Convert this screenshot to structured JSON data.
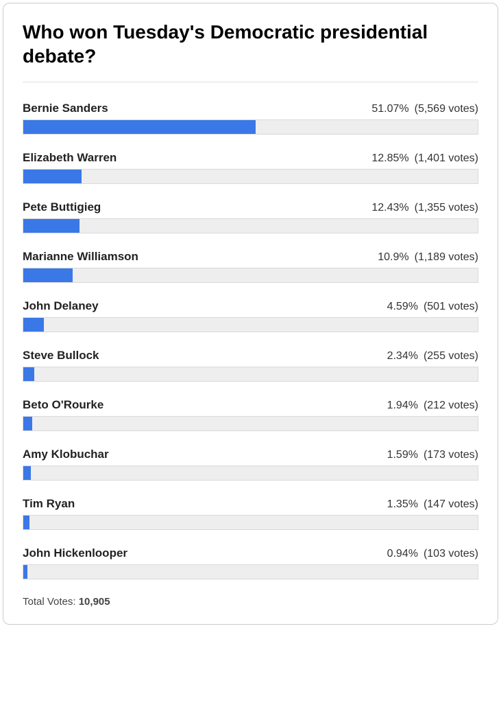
{
  "poll": {
    "title": "Who won Tuesday's Democratic presidential debate?",
    "bar_color": "#3b78e7",
    "track_color": "#eeeeee",
    "track_border": "#d9d9d9",
    "candidates": [
      {
        "name": "Bernie Sanders",
        "percent": 51.07,
        "percent_label": "51.07%",
        "votes": "(5,569 votes)"
      },
      {
        "name": "Elizabeth Warren",
        "percent": 12.85,
        "percent_label": "12.85%",
        "votes": "(1,401 votes)"
      },
      {
        "name": "Pete Buttigieg",
        "percent": 12.43,
        "percent_label": "12.43%",
        "votes": "(1,355 votes)"
      },
      {
        "name": "Marianne Williamson",
        "percent": 10.9,
        "percent_label": "10.9%",
        "votes": "(1,189 votes)"
      },
      {
        "name": "John Delaney",
        "percent": 4.59,
        "percent_label": "4.59%",
        "votes": "(501 votes)"
      },
      {
        "name": "Steve Bullock",
        "percent": 2.34,
        "percent_label": "2.34%",
        "votes": "(255 votes)"
      },
      {
        "name": "Beto O'Rourke",
        "percent": 1.94,
        "percent_label": "1.94%",
        "votes": "(212 votes)"
      },
      {
        "name": "Amy Klobuchar",
        "percent": 1.59,
        "percent_label": "1.59%",
        "votes": "(173 votes)"
      },
      {
        "name": "Tim Ryan",
        "percent": 1.35,
        "percent_label": "1.35%",
        "votes": "(147 votes)"
      },
      {
        "name": "John Hickenlooper",
        "percent": 0.94,
        "percent_label": "0.94%",
        "votes": "(103 votes)"
      }
    ],
    "total_label": "Total Votes: ",
    "total_value": "10,905"
  }
}
